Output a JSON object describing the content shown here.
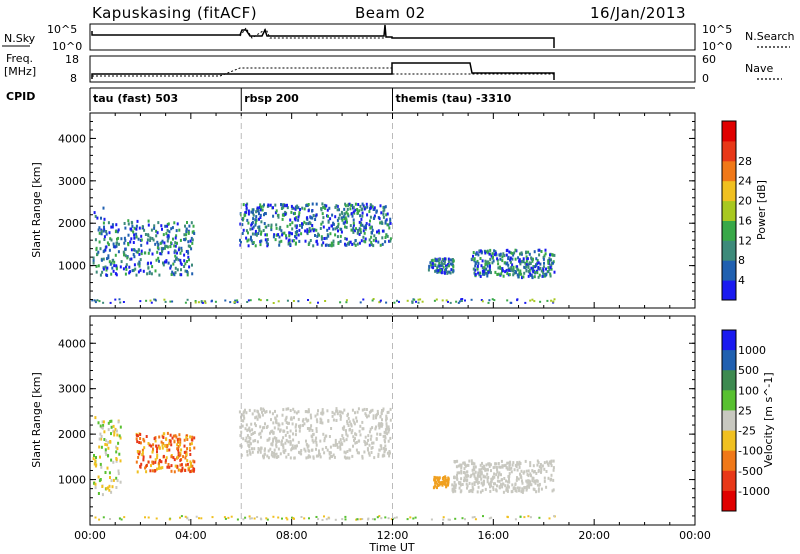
{
  "header": {
    "title": "Kapuskasing (fitACF)",
    "beam": "Beam 02",
    "date": "16/Jan/2013"
  },
  "top_panels": {
    "nsky_label": "N.Sky",
    "nsky_ticks": [
      "10^5",
      "10^0"
    ],
    "nsearch_label": "N.Search",
    "nsearch_ticks": [
      "10^5",
      "10^0"
    ],
    "freq_label": "Freq.",
    "freq_unit": "[MHz]",
    "freq_ticks": [
      "18",
      "8"
    ],
    "nave_label": "Nave",
    "nave_ticks": [
      "60",
      "0"
    ],
    "cpid_label": "CPID"
  },
  "cpid_segments": [
    {
      "start": 0,
      "end": 6,
      "label": "tau (fast) 503"
    },
    {
      "start": 6,
      "end": 12,
      "label": "rbsp 200"
    },
    {
      "start": 12,
      "end": 24,
      "label": "themis (tau) -3310"
    }
  ],
  "chart_data": [
    {
      "type": "heatmap",
      "title": "Power",
      "xlabel": "Time UT",
      "ylabel": "Slant Range [km]",
      "xlim": [
        0,
        24
      ],
      "ylim": [
        0,
        4600
      ],
      "x_ticks": [
        "00:00",
        "04:00",
        "08:00",
        "12:00",
        "16:00",
        "20:00",
        "00:00"
      ],
      "y_ticks": [
        1000,
        2000,
        3000,
        4000
      ],
      "colorbar_label": "Power [dB]",
      "colorbar_ticks": [
        "4",
        "8",
        "12",
        "16",
        "20",
        "24",
        "28"
      ],
      "colorbar_colors": [
        "#1a1af0",
        "#2060b0",
        "#3d8a7a",
        "#38a848",
        "#a8c820",
        "#f0c020",
        "#f07818",
        "#e83818",
        "#e00000"
      ],
      "scatter_regions": [
        {
          "t0": 0.1,
          "t1": 0.6,
          "r0": 650,
          "r1": 2400
        },
        {
          "t0": 0.6,
          "t1": 4.1,
          "r0": 800,
          "r1": 2100
        },
        {
          "t0": 5.9,
          "t1": 11.9,
          "r0": 1500,
          "r1": 2500
        },
        {
          "t0": 13.4,
          "t1": 14.4,
          "r0": 850,
          "r1": 1200
        },
        {
          "t0": 15.1,
          "t1": 18.4,
          "r0": 750,
          "r1": 1400
        }
      ]
    },
    {
      "type": "heatmap",
      "title": "Velocity",
      "xlabel": "Time UT",
      "ylabel": "Slant Range [km]",
      "xlim": [
        0,
        24
      ],
      "ylim": [
        0,
        4600
      ],
      "x_ticks": [
        "00:00",
        "04:00",
        "08:00",
        "12:00",
        "16:00",
        "20:00",
        "00:00"
      ],
      "y_ticks": [
        1000,
        2000,
        3000,
        4000
      ],
      "colorbar_label": "Velocity [m s^-1]",
      "colorbar_ticks": [
        "1000",
        "500",
        "100",
        "25",
        "-25",
        "-100",
        "-500",
        "-1000"
      ],
      "colorbar_colors": [
        "#1a1af0",
        "#2060b0",
        "#3d8a50",
        "#58c030",
        "#c8c8c0",
        "#f0c020",
        "#f07818",
        "#e83818",
        "#e00000"
      ],
      "scatter_regions": [
        {
          "t0": 0.1,
          "t1": 1.2,
          "r0": 700,
          "r1": 2400
        },
        {
          "t0": 1.8,
          "t1": 4.1,
          "r0": 1200,
          "r1": 2050
        },
        {
          "t0": 5.9,
          "t1": 11.9,
          "r0": 1500,
          "r1": 2600
        },
        {
          "t0": 13.6,
          "t1": 14.2,
          "r0": 850,
          "r1": 1100
        },
        {
          "t0": 14.3,
          "t1": 18.4,
          "r0": 750,
          "r1": 1450
        }
      ]
    }
  ]
}
